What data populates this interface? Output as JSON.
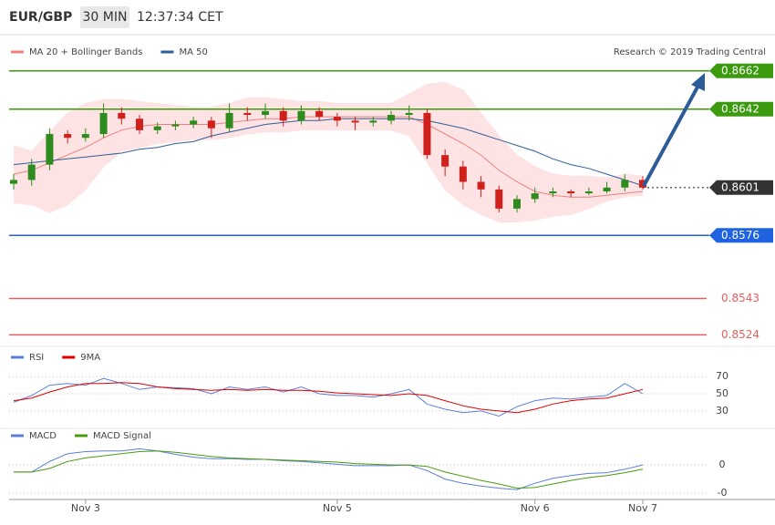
{
  "chart_data": [
    {
      "type": "candlestick",
      "title": "EUR/GBP",
      "interval": "30 MIN",
      "time": "12:37:34 CET",
      "source": "Research © 2019 Trading Central",
      "categories": [
        null,
        null,
        null,
        null,
        "Nov 3",
        null,
        null,
        null,
        null,
        null,
        null,
        null,
        null,
        null,
        null,
        null,
        null,
        null,
        "Nov 5",
        null,
        null,
        null,
        null,
        null,
        null,
        null,
        null,
        null,
        null,
        "Nov 6",
        null,
        null,
        null,
        null,
        null,
        "Nov 7"
      ],
      "ylim": [
        0.8518,
        0.868
      ],
      "up_color": "#2e8b1e",
      "down_color": "#d0201b",
      "open": [
        0.8603,
        0.8605,
        0.8613,
        0.8629,
        0.8627,
        0.8629,
        0.864,
        0.8637,
        0.8631,
        0.8633,
        0.8634,
        0.8636,
        0.8632,
        0.864,
        0.8639,
        0.8641,
        0.8636,
        0.8641,
        0.8638,
        0.8636,
        0.8635,
        0.8636,
        0.8639,
        0.864,
        0.8618,
        0.8612,
        0.8604,
        0.86,
        0.859,
        0.8595,
        0.8598,
        0.8599,
        0.8598,
        0.8599,
        0.8601,
        0.8605
      ],
      "high": [
        0.8608,
        0.8616,
        0.8632,
        0.8631,
        0.8632,
        0.8645,
        0.8643,
        0.8639,
        0.8635,
        0.8636,
        0.8638,
        0.8638,
        0.8645,
        0.8643,
        0.8645,
        0.8643,
        0.8644,
        0.8643,
        0.864,
        0.8638,
        0.8638,
        0.8641,
        0.8644,
        0.8642,
        0.8621,
        0.8615,
        0.8607,
        0.8602,
        0.8597,
        0.8601,
        0.8601,
        0.86,
        0.8601,
        0.8604,
        0.8608,
        0.8607
      ],
      "low": [
        0.86,
        0.8602,
        0.861,
        0.8624,
        0.8625,
        0.8627,
        0.8634,
        0.8629,
        0.8629,
        0.8631,
        0.8632,
        0.8627,
        0.863,
        0.8636,
        0.8637,
        0.8633,
        0.8634,
        0.8636,
        0.8633,
        0.8631,
        0.8633,
        0.8634,
        0.8636,
        0.8616,
        0.8607,
        0.86,
        0.8596,
        0.8588,
        0.8588,
        0.8593,
        0.8596,
        0.8596,
        0.8597,
        0.8598,
        0.8599,
        0.86
      ],
      "close": [
        0.8605,
        0.8613,
        0.8629,
        0.8627,
        0.8629,
        0.864,
        0.8637,
        0.8631,
        0.8633,
        0.8634,
        0.8636,
        0.8632,
        0.864,
        0.8639,
        0.8641,
        0.8636,
        0.8641,
        0.8638,
        0.8636,
        0.8635,
        0.8636,
        0.8639,
        0.864,
        0.8618,
        0.8612,
        0.8604,
        0.86,
        0.859,
        0.8595,
        0.8598,
        0.8599,
        0.8598,
        0.8599,
        0.8601,
        0.8605,
        0.8601
      ],
      "series": [
        {
          "name": "MA 20 + Bollinger Bands",
          "color": "#f08080",
          "band_color": "#fde3e3",
          "values": [
            0.8608,
            0.861,
            0.8614,
            0.8618,
            0.8622,
            0.8627,
            0.8631,
            0.8633,
            0.8634,
            0.8634,
            0.8634,
            0.8634,
            0.8635,
            0.8636,
            0.8637,
            0.8637,
            0.8638,
            0.8638,
            0.8638,
            0.8638,
            0.8638,
            0.8638,
            0.8638,
            0.8634,
            0.8629,
            0.8624,
            0.8618,
            0.861,
            0.8604,
            0.8599,
            0.8597,
            0.8596,
            0.8596,
            0.8597,
            0.8598,
            0.8599
          ],
          "upper": [
            0.8623,
            0.862,
            0.863,
            0.864,
            0.8645,
            0.8647,
            0.8647,
            0.8646,
            0.8645,
            0.8644,
            0.8643,
            0.8643,
            0.8645,
            0.8648,
            0.8648,
            0.8647,
            0.8646,
            0.8646,
            0.8645,
            0.8645,
            0.8645,
            0.8645,
            0.865,
            0.8655,
            0.8656,
            0.8652,
            0.864,
            0.8628,
            0.8618,
            0.8612,
            0.8608,
            0.8607,
            0.8607,
            0.8606,
            0.8608,
            0.8607
          ],
          "lower": [
            0.8593,
            0.8592,
            0.8588,
            0.8592,
            0.86,
            0.8612,
            0.862,
            0.8622,
            0.8624,
            0.8625,
            0.8626,
            0.8626,
            0.8627,
            0.8629,
            0.863,
            0.863,
            0.8631,
            0.8631,
            0.8631,
            0.8631,
            0.8631,
            0.8631,
            0.8628,
            0.8614,
            0.86,
            0.8592,
            0.8587,
            0.8583,
            0.8583,
            0.8584,
            0.8586,
            0.8587,
            0.859,
            0.8594,
            0.8596,
            0.8597
          ]
        },
        {
          "name": "MA 50",
          "color": "#2f5f98",
          "values": [
            0.8613,
            0.8614,
            0.8615,
            0.8616,
            0.8617,
            0.8618,
            0.8619,
            0.8621,
            0.8622,
            0.8624,
            0.8625,
            0.8628,
            0.863,
            0.8632,
            0.8634,
            0.8635,
            0.8636,
            0.8636,
            0.8637,
            0.8637,
            0.8637,
            0.8637,
            0.8637,
            0.8636,
            0.8634,
            0.8632,
            0.8629,
            0.8626,
            0.8623,
            0.862,
            0.8616,
            0.8613,
            0.8611,
            0.8608,
            0.8605,
            0.8602
          ]
        }
      ],
      "levels": [
        {
          "value": 0.8662,
          "color": "#3c9a0e",
          "box": true,
          "dotted": false
        },
        {
          "value": 0.8642,
          "color": "#3c9a0e",
          "box": true,
          "dotted": false
        },
        {
          "value": 0.8601,
          "color": "#333333",
          "box": true,
          "dotted": true
        },
        {
          "value": 0.8576,
          "color": "#1f63e0",
          "box": true,
          "dotted": false
        },
        {
          "value": 0.8543,
          "color": "#e06060",
          "box": false,
          "dotted": false
        },
        {
          "value": 0.8524,
          "color": "#e06060",
          "box": false,
          "dotted": false
        }
      ]
    },
    {
      "type": "line",
      "ylim": [
        15,
        84
      ],
      "yticks": [
        30,
        50,
        70
      ],
      "series": [
        {
          "name": "RSI",
          "color": "#5b7fd6",
          "values": [
            40,
            48,
            60,
            62,
            60,
            68,
            62,
            55,
            58,
            57,
            56,
            50,
            58,
            55,
            58,
            52,
            58,
            50,
            48,
            48,
            46,
            50,
            55,
            38,
            32,
            28,
            30,
            24,
            35,
            42,
            45,
            44,
            46,
            48,
            62,
            50
          ]
        },
        {
          "name": "9MA",
          "color": "#e00000",
          "values": [
            42,
            45,
            52,
            58,
            62,
            62,
            63,
            62,
            58,
            56,
            55,
            54,
            55,
            54,
            55,
            54,
            54,
            53,
            51,
            50,
            49,
            48,
            50,
            48,
            42,
            36,
            32,
            30,
            28,
            32,
            38,
            42,
            44,
            45,
            50,
            55
          ]
        }
      ]
    },
    {
      "type": "line",
      "ylim": [
        -0.00049,
        0.00039
      ],
      "yticks": [
        0,
        {
          "value": -0.0004,
          "label": "-0"
        }
      ],
      "series": [
        {
          "name": "MACD",
          "color": "#5b7fd6",
          "values": [
            -0.0001,
            -0.0001,
            5e-05,
            0.00016,
            0.00019,
            0.0002,
            0.0002,
            0.00023,
            0.0002,
            0.00015,
            0.00011,
            9e-05,
            9e-05,
            8e-05,
            8e-05,
            6e-05,
            5e-05,
            3e-05,
            1e-05,
            -1e-05,
            -1e-05,
            -1e-05,
            0,
            -8e-05,
            -0.0002,
            -0.00026,
            -0.0003,
            -0.00033,
            -0.00035,
            -0.00026,
            -0.00019,
            -0.00015,
            -0.00012,
            -0.00011,
            -6e-05,
            0
          ]
        },
        {
          "name": "MACD Signal",
          "color": "#4a9a10",
          "values": [
            -0.0001,
            -0.0001,
            -5e-05,
            5e-05,
            0.0001,
            0.00013,
            0.00016,
            0.00019,
            0.0002,
            0.00018,
            0.00015,
            0.00012,
            0.0001,
            9e-05,
            8e-05,
            7e-05,
            6e-05,
            5e-05,
            4e-05,
            2e-05,
            1e-05,
            0,
            0,
            -2e-05,
            -0.0001,
            -0.00016,
            -0.00022,
            -0.00027,
            -0.00033,
            -0.00032,
            -0.00027,
            -0.00022,
            -0.00018,
            -0.00015,
            -0.00011,
            -6e-05
          ]
        }
      ]
    }
  ]
}
